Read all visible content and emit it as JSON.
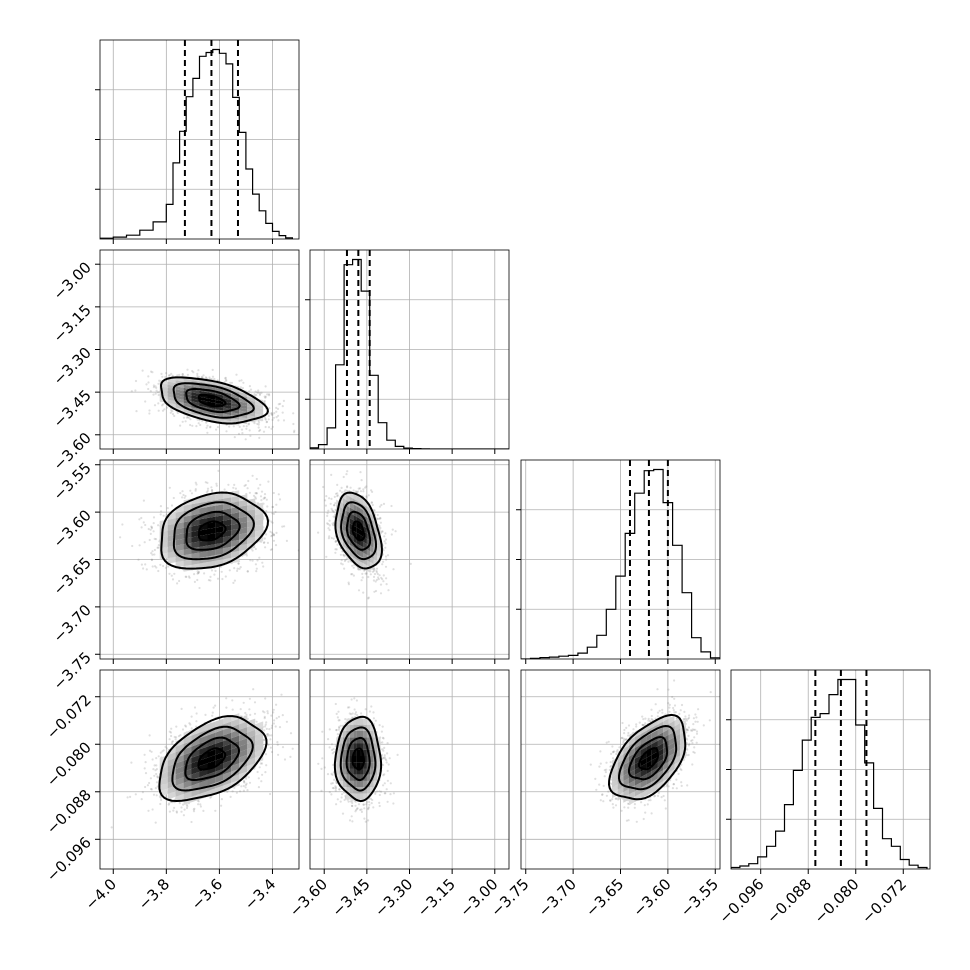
{
  "chart_data": {
    "type": "corner",
    "grid": true,
    "colors": {
      "line": "#000000",
      "grid": "#b0b0b0",
      "points": "#7f7f7f",
      "density_high": "#000000",
      "density_low": "#ffffff"
    },
    "parameters": [
      {
        "mean": -3.63,
        "sd": 0.1,
        "quantiles": [
          -3.73,
          -3.63,
          -3.53
        ],
        "lim": [
          -4.05,
          -3.3
        ],
        "ticks": [
          -4.0,
          -3.8,
          -3.6,
          -3.4
        ],
        "tick_labels": [
          "−4.0",
          "−3.8",
          "−3.6",
          "−3.4"
        ]
      },
      {
        "mean": -3.48,
        "sd": 0.04,
        "quantiles": [
          -3.52,
          -3.48,
          -3.44
        ],
        "lim": [
          -3.65,
          -2.95
        ],
        "ticks": [
          -3.6,
          -3.45,
          -3.3,
          -3.15,
          -3.0
        ],
        "tick_labels": [
          "−3.60",
          "−3.45",
          "−3.30",
          "−3.15",
          "−3.00"
        ]
      },
      {
        "mean": -3.62,
        "sd": 0.02,
        "quantiles": [
          -3.64,
          -3.62,
          -3.6
        ],
        "lim": [
          -3.755,
          -3.545
        ],
        "ticks": [
          -3.75,
          -3.7,
          -3.65,
          -3.6,
          -3.55
        ],
        "tick_labels": [
          "−3.75",
          "−3.70",
          "−3.65",
          "−3.60",
          "−3.55"
        ]
      },
      {
        "mean": -0.0825,
        "sd": 0.0035,
        "quantiles": [
          -0.0868,
          -0.0825,
          -0.0782
        ],
        "lim": [
          -0.101,
          -0.0675
        ],
        "ticks": [
          -0.096,
          -0.088,
          -0.08,
          -0.072
        ],
        "tick_labels": [
          "−0.096",
          "−0.088",
          "−0.080",
          "−0.072"
        ]
      }
    ],
    "diagonal_histograms": [
      {
        "bin_edges": [
          -4.05,
          -4.0,
          -3.95,
          -3.9,
          -3.85,
          -3.8,
          -3.775,
          -3.75,
          -3.725,
          -3.7,
          -3.675,
          -3.65,
          -3.625,
          -3.6,
          -3.575,
          -3.55,
          -3.525,
          -3.5,
          -3.475,
          -3.45,
          -3.425,
          -3.4,
          -3.375,
          -3.35,
          -3.325
        ],
        "counts": [
          2,
          5,
          10,
          23,
          45,
          91,
          200,
          283,
          374,
          422,
          480,
          490,
          498,
          488,
          460,
          372,
          280,
          184,
          118,
          74,
          41,
          20,
          9,
          3
        ]
      },
      {
        "bin_edges": [
          -3.65,
          -3.62,
          -3.59,
          -3.56,
          -3.53,
          -3.5,
          -3.47,
          -3.44,
          -3.41,
          -3.38,
          -3.35,
          -3.32,
          -3.29,
          -3.26,
          -3.23,
          -3.2,
          -3.15,
          -3.1,
          -3.05,
          -3.0,
          -2.95
        ],
        "counts": [
          6,
          25,
          120,
          480,
          1050,
          1080,
          900,
          420,
          150,
          50,
          15,
          5,
          2,
          1,
          0,
          0,
          0,
          0,
          0,
          0
        ]
      },
      {
        "bin_edges": [
          -3.755,
          -3.745,
          -3.735,
          -3.725,
          -3.715,
          -3.705,
          -3.695,
          -3.685,
          -3.675,
          -3.665,
          -3.655,
          -3.645,
          -3.635,
          -3.625,
          -3.615,
          -3.605,
          -3.595,
          -3.585,
          -3.575,
          -3.565,
          -3.555,
          -3.545
        ],
        "counts": [
          0,
          3,
          6,
          8,
          12,
          15,
          25,
          50,
          100,
          210,
          350,
          530,
          700,
          795,
          800,
          660,
          480,
          280,
          90,
          30,
          5
        ]
      },
      {
        "bin_edges": [
          -0.101,
          -0.0995,
          -0.098,
          -0.0965,
          -0.095,
          -0.0935,
          -0.092,
          -0.0905,
          -0.089,
          -0.0875,
          -0.086,
          -0.0845,
          -0.083,
          -0.0815,
          -0.08,
          -0.0785,
          -0.077,
          -0.0755,
          -0.074,
          -0.0725,
          -0.071,
          -0.0695,
          -0.068
        ],
        "counts": [
          4,
          8,
          14,
          32,
          60,
          100,
          170,
          260,
          340,
          400,
          410,
          460,
          500,
          500,
          380,
          280,
          160,
          80,
          60,
          25,
          10,
          4
        ]
      }
    ],
    "pairwise_correlations": {
      "1-0": -0.45,
      "2-0": 0.25,
      "2-1": -0.35,
      "3-0": 0.45,
      "3-1": 0.0,
      "3-2": 0.5
    },
    "contour_sigma_levels": [
      0.5,
      1.0,
      1.5,
      2.0
    ]
  }
}
